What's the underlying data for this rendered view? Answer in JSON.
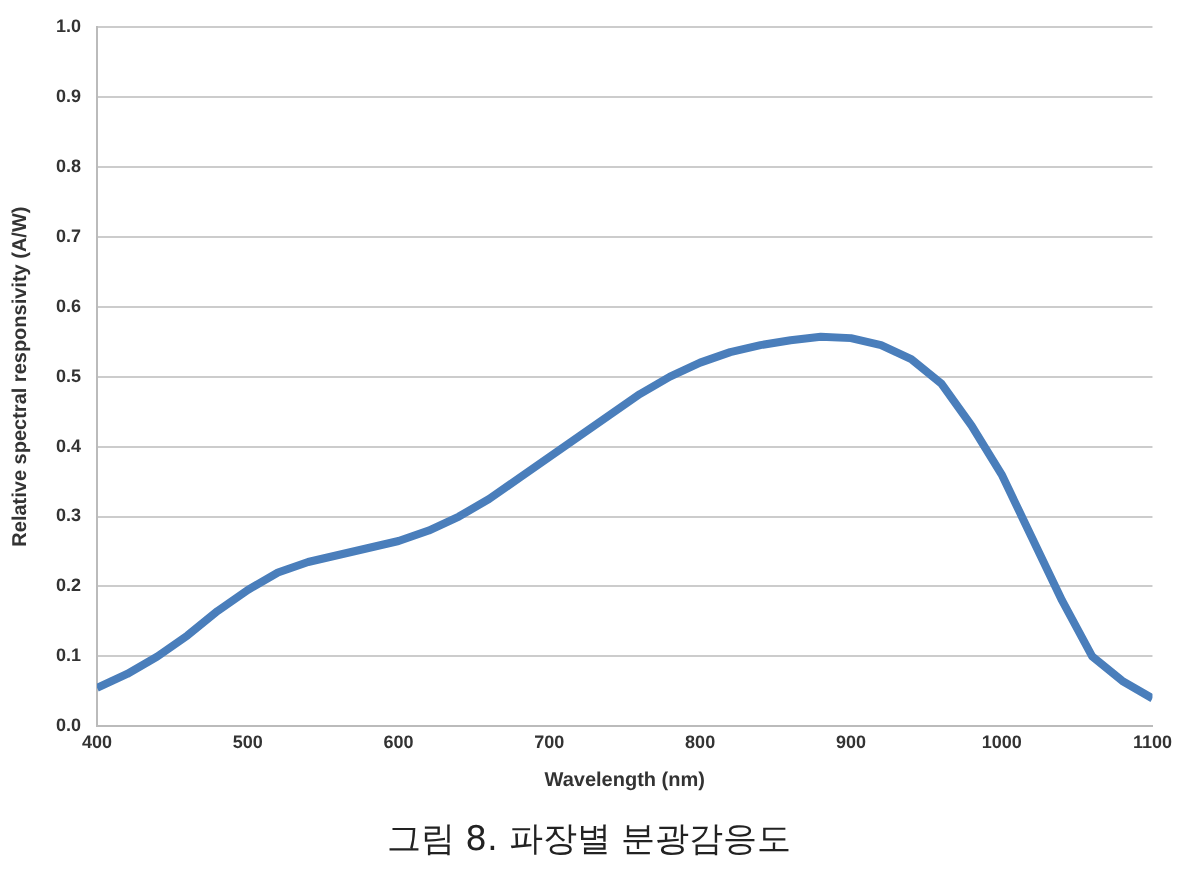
{
  "chart_data": {
    "type": "line",
    "xlabel": "Wavelength (nm)",
    "ylabel": "Relative spectral responsivity (A/W)",
    "annotations": [
      "그림 8. 파장별 분광감응도"
    ],
    "x": [
      400,
      420,
      440,
      460,
      480,
      500,
      520,
      540,
      560,
      580,
      600,
      620,
      640,
      660,
      680,
      700,
      720,
      740,
      760,
      780,
      800,
      820,
      840,
      860,
      880,
      900,
      920,
      940,
      960,
      980,
      1000,
      1020,
      1040,
      1060,
      1080,
      1100
    ],
    "series": [
      {
        "color": "#4a7ebb",
        "values": [
          0.055,
          0.075,
          0.1,
          0.13,
          0.165,
          0.195,
          0.22,
          0.235,
          0.245,
          0.255,
          0.265,
          0.28,
          0.3,
          0.325,
          0.355,
          0.385,
          0.415,
          0.445,
          0.475,
          0.5,
          0.52,
          0.535,
          0.545,
          0.552,
          0.557,
          0.555,
          0.545,
          0.525,
          0.49,
          0.43,
          0.36,
          0.27,
          0.18,
          0.1,
          0.065,
          0.04
        ]
      }
    ],
    "xlim": [
      400,
      1100
    ],
    "xticks": [
      400,
      500,
      600,
      700,
      800,
      900,
      1000,
      1100
    ],
    "ylim": [
      0,
      1
    ],
    "yticks": [
      "0.0",
      0.1,
      0.2,
      0.3,
      0.4,
      0.5,
      0.6,
      0.7,
      0.8,
      0.9,
      "1.0"
    ],
    "grid": "y",
    "legend": false,
    "marker": "none",
    "line_style": "solid"
  }
}
